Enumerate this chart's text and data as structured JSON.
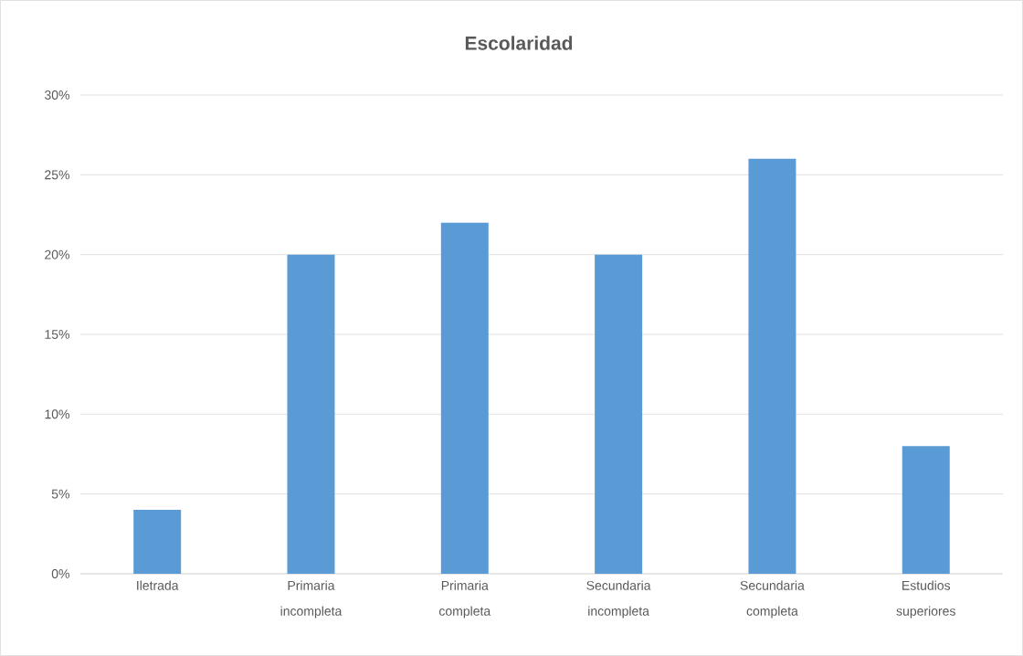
{
  "chart_data": {
    "type": "bar",
    "title": "Escolaridad",
    "categories": [
      "Iletrada",
      "Primaria incompleta",
      "Primaria completa",
      "Secundaria incompleta",
      "Secundaria completa",
      "Estudios superiores"
    ],
    "values": [
      4,
      20,
      22,
      20,
      26,
      8
    ],
    "color": "#5b9bd5",
    "ylim": [
      0,
      30
    ],
    "yticks": [
      {
        "value": 0,
        "label": "0%"
      },
      {
        "value": 5,
        "label": "5%"
      },
      {
        "value": 10,
        "label": "10%"
      },
      {
        "value": 15,
        "label": "15%"
      },
      {
        "value": 20,
        "label": "20%"
      },
      {
        "value": 25,
        "label": "25%"
      },
      {
        "value": 30,
        "label": "30%"
      }
    ],
    "grid": "y"
  }
}
